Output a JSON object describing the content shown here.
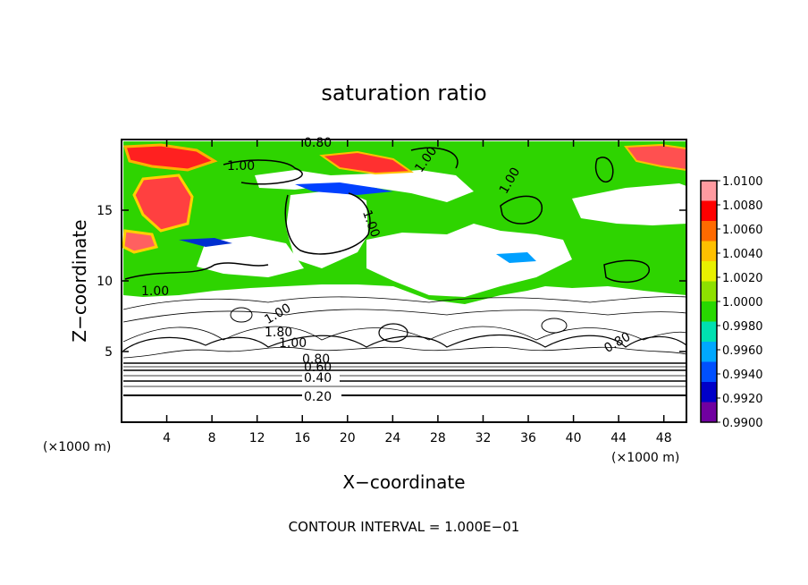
{
  "chart_data": {
    "type": "heatmap",
    "title": "saturation ratio",
    "xlabel": "X−coordinate",
    "ylabel": "Z−coordinate",
    "x_unit_left": "(×1000 m)",
    "x_unit_right": "(×1000 m)",
    "footer": "CONTOUR INTERVAL = 1.000E−01",
    "xlim": [
      0,
      50
    ],
    "ylim": [
      0,
      20
    ],
    "x_ticks": [
      4,
      8,
      12,
      16,
      20,
      24,
      28,
      32,
      36,
      40,
      44,
      48
    ],
    "y_ticks": [
      5,
      10,
      15
    ],
    "contour_labels": [
      {
        "text": "0.20",
        "x": 18.5,
        "y": 1.9
      },
      {
        "text": "0.40",
        "x": 18.2,
        "y": 3.2
      },
      {
        "text": "0.60",
        "x": 18.2,
        "y": 4.0
      },
      {
        "text": "0.80",
        "x": 18.0,
        "y": 4.8
      },
      {
        "text": "1.00",
        "x": 10.0,
        "y": 18.2
      },
      {
        "text": "1.00",
        "x": 21.0,
        "y": 14.5
      },
      {
        "text": "1.00",
        "x": 34.0,
        "y": 17.8
      },
      {
        "text": "1.00",
        "x": 26.5,
        "y": 18.3
      },
      {
        "text": "1.00",
        "x": 3.0,
        "y": 9.6
      },
      {
        "text": "1.00",
        "x": 13.5,
        "y": 7.6
      },
      {
        "text": "1.00",
        "x": 13.8,
        "y": 5.6
      },
      {
        "text": "1.80",
        "x": 12.8,
        "y": 6.3
      },
      {
        "text": "0.80",
        "x": 17.0,
        "y": 19.7
      },
      {
        "text": "0.80",
        "x": 43.5,
        "y": 5.5
      }
    ],
    "colorbar": {
      "labels": [
        "1.0100",
        "1.0080",
        "1.0060",
        "1.0040",
        "1.0020",
        "1.0000",
        "0.9980",
        "0.9960",
        "0.9940",
        "0.9920",
        "0.9900"
      ],
      "colors": [
        "#ff9aa0",
        "#ff0000",
        "#ff6a00",
        "#ffc000",
        "#e8f000",
        "#8ee000",
        "#28d800",
        "#00e0b0",
        "#00a8ff",
        "#0050ff",
        "#0000c8",
        "#7000a0"
      ]
    },
    "grid": false,
    "legend": "right"
  }
}
